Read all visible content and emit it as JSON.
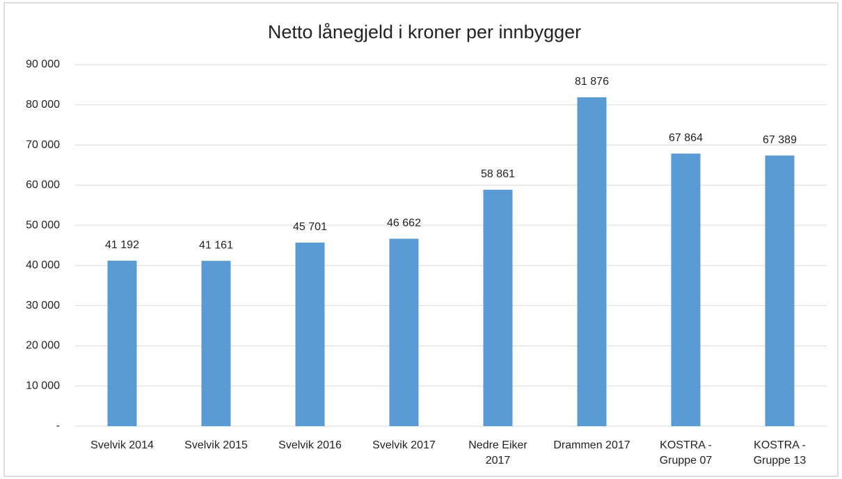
{
  "chart_data": {
    "type": "bar",
    "title": "Netto lånegjeld i kroner per innbygger",
    "categories": [
      "Svelvik 2014",
      "Svelvik 2015",
      "Svelvik 2016",
      "Svelvik 2017",
      "Nedre Eiker 2017",
      "Drammen 2017",
      "KOSTRA - Gruppe 07",
      "KOSTRA - Gruppe 13"
    ],
    "values": [
      41192,
      41161,
      45701,
      46662,
      58861,
      81876,
      67864,
      67389
    ],
    "value_labels": [
      "41 192",
      "41 161",
      "45 701",
      "46 662",
      "58 861",
      "81 876",
      "67 864",
      "67 389"
    ],
    "color": "#5b9bd5",
    "ylim": [
      0,
      90000
    ],
    "yticks": [
      {
        "value": 0,
        "label": "-"
      },
      {
        "value": 10000,
        "label": "10 000"
      },
      {
        "value": 20000,
        "label": "20 000"
      },
      {
        "value": 30000,
        "label": "30 000"
      },
      {
        "value": 40000,
        "label": "40 000"
      },
      {
        "value": 50000,
        "label": "50 000"
      },
      {
        "value": 60000,
        "label": "60 000"
      },
      {
        "value": 70000,
        "label": "70 000"
      },
      {
        "value": 80000,
        "label": "80 000"
      },
      {
        "value": 90000,
        "label": "90 000"
      }
    ],
    "grid": true
  }
}
